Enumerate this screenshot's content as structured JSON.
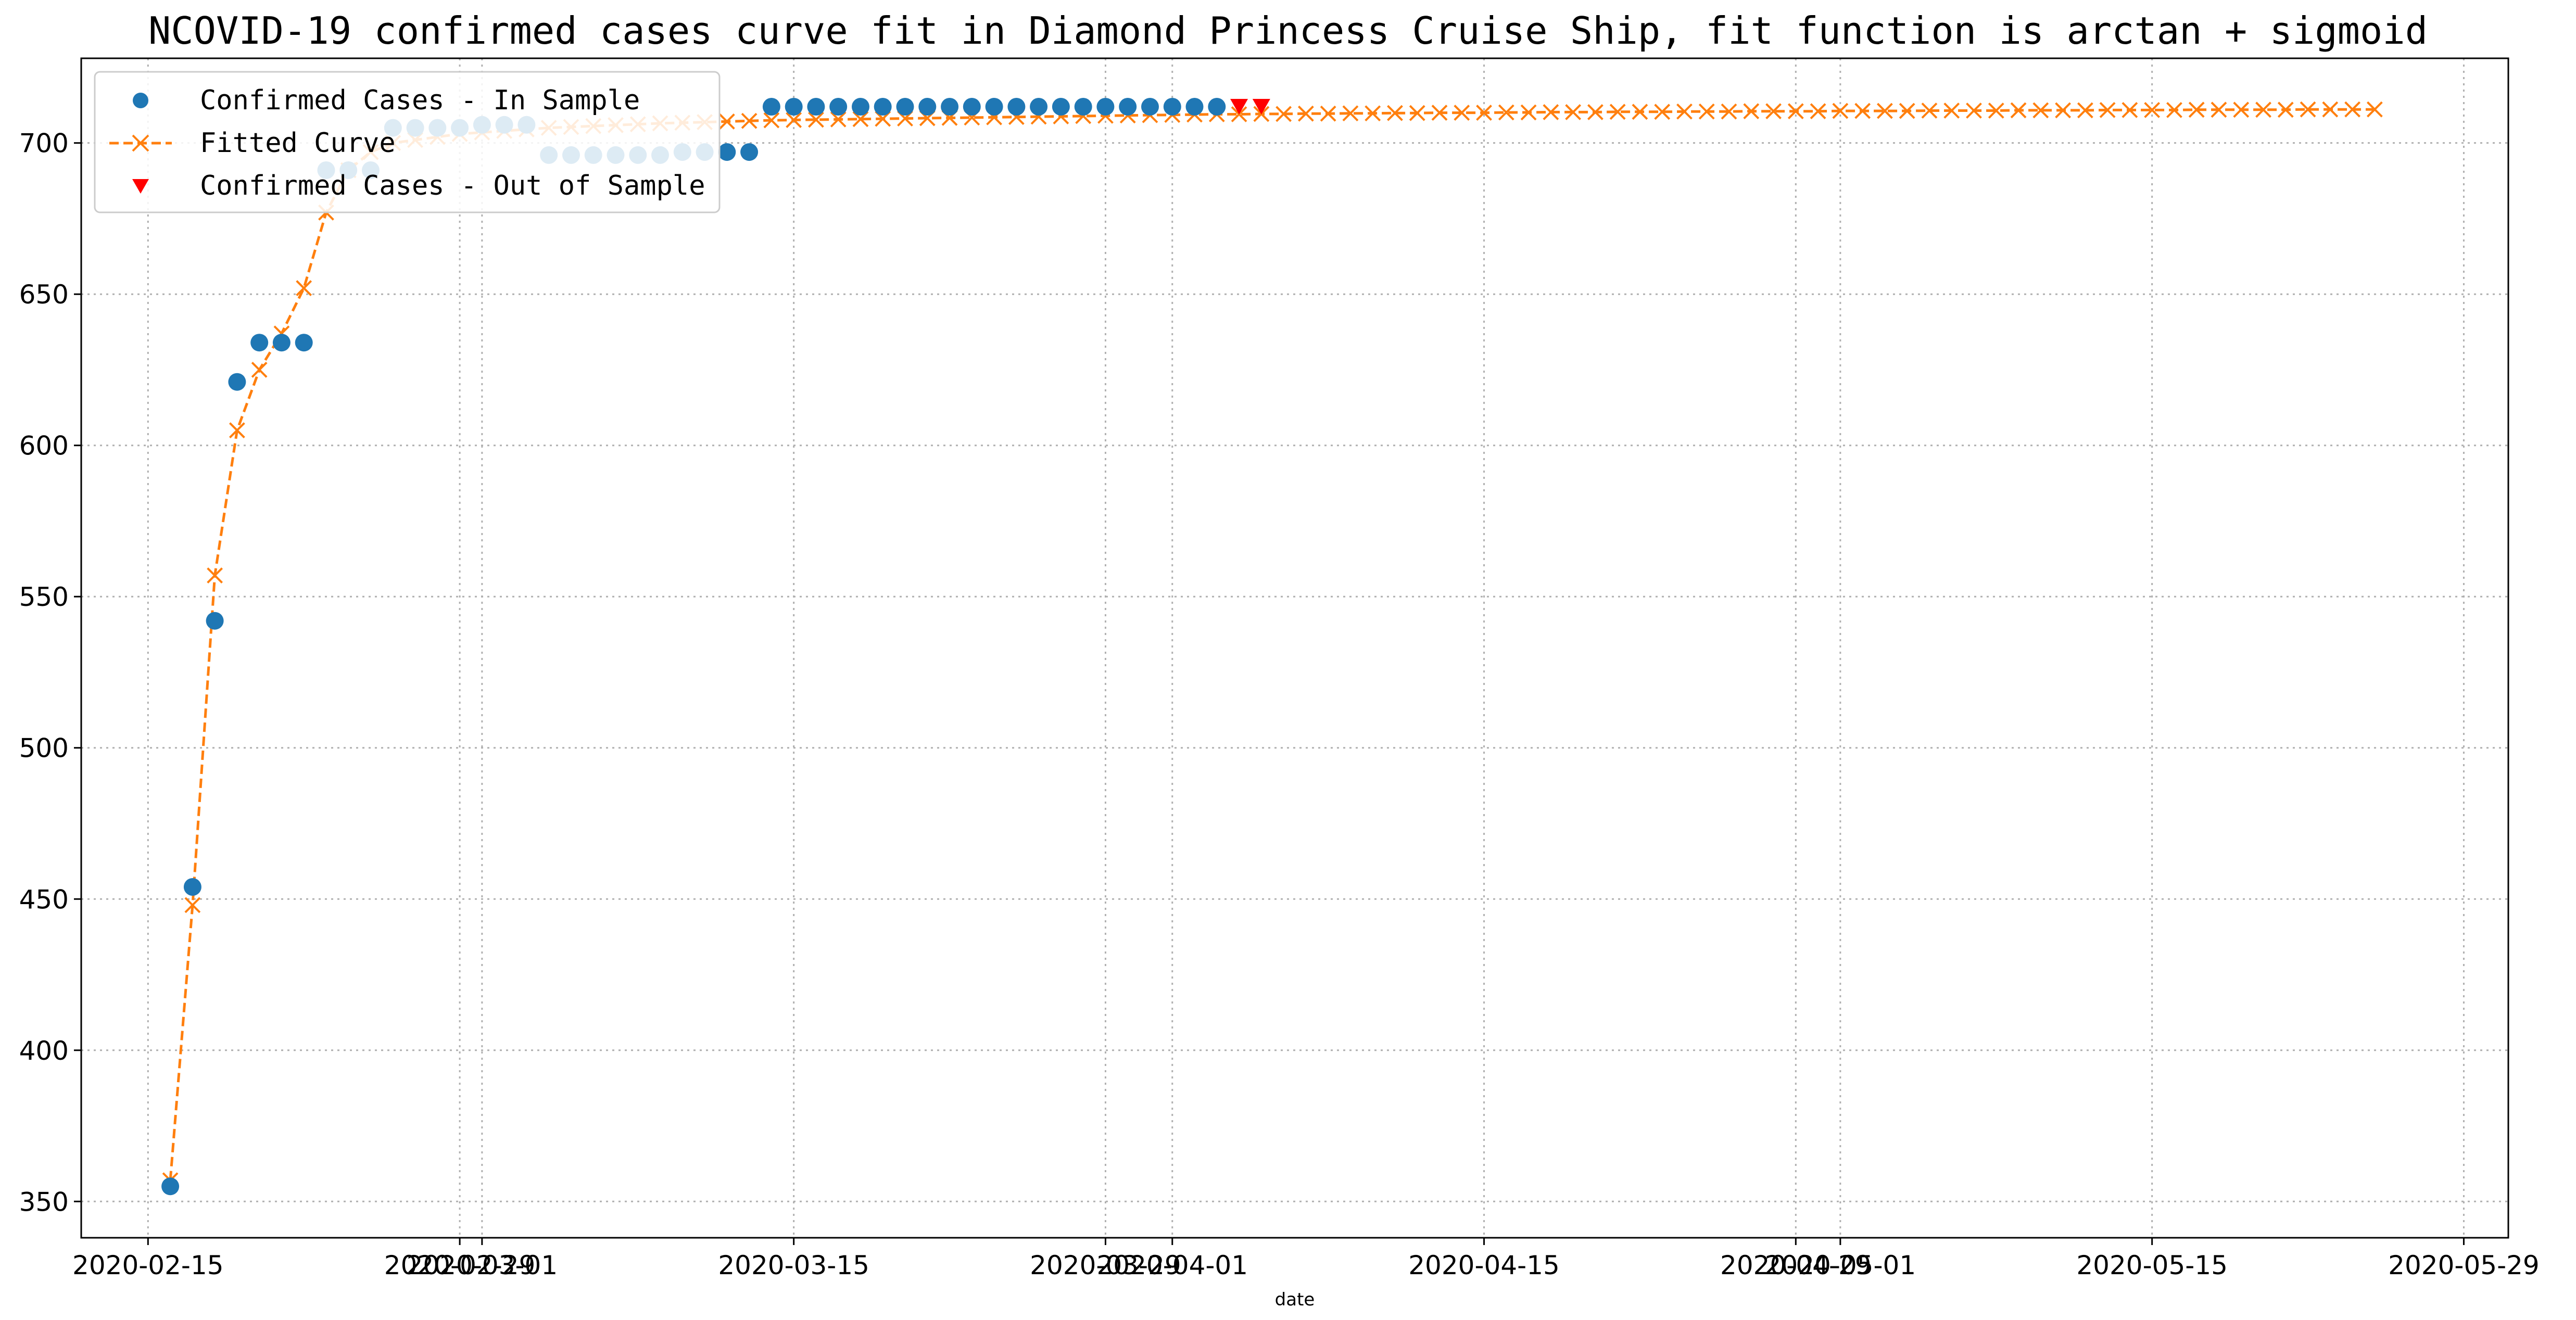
{
  "chart_data": {
    "type": "line",
    "title": "NCOVID-19 confirmed cases curve fit in Diamond Princess Cruise Ship, fit function is arctan + sigmoid",
    "xlabel": "date",
    "ylabel": "",
    "xlim": [
      "2020-02-12",
      "2020-05-31"
    ],
    "ylim": [
      338,
      728
    ],
    "grid": true,
    "legend_position": "top-left",
    "x_tick_labels": [
      "2020-02-15",
      "2020-02-29",
      "2020-03-01",
      "2020-03-15",
      "2020-03-29",
      "2020-04-01",
      "2020-04-15",
      "2020-04-29",
      "2020-05-01",
      "2020-05-15",
      "2020-05-29"
    ],
    "x_ticks": [
      "2020-02-15",
      "2020-02-29",
      "2020-03-01",
      "2020-03-15",
      "2020-03-29",
      "2020-04-01",
      "2020-04-15",
      "2020-04-29",
      "2020-05-01",
      "2020-05-15",
      "2020-05-29"
    ],
    "y_ticks": [
      350,
      400,
      450,
      500,
      550,
      600,
      650,
      700
    ],
    "y_tick_labels": [
      "350",
      "400",
      "450",
      "500",
      "550",
      "600",
      "650",
      "700"
    ],
    "series": [
      {
        "name": "Confirmed Cases - In Sample",
        "kind": "scatter",
        "marker": "circle",
        "color": "#1f77b4",
        "start_date": "2020-02-16",
        "values": [
          355,
          454,
          542,
          621,
          634,
          634,
          634,
          691,
          691,
          691,
          705,
          705,
          705,
          705,
          706,
          706,
          706,
          696,
          696,
          696,
          696,
          696,
          696,
          697,
          697,
          697,
          697,
          712,
          712,
          712,
          712,
          712,
          712,
          712,
          712,
          712,
          712,
          712,
          712,
          712,
          712,
          712,
          712,
          712,
          712,
          712,
          712,
          712
        ]
      },
      {
        "name": "Fitted Curve",
        "kind": "line",
        "marker": "x",
        "line_style": "dashed",
        "color": "#ff7f0e",
        "start_date": "2020-02-16",
        "values": [
          357,
          448,
          557,
          605,
          625,
          637,
          652,
          677,
          691,
          697,
          700,
          701,
          702,
          703,
          703.5,
          704,
          704.5,
          705,
          705.3,
          705.6,
          705.9,
          706.2,
          706.5,
          706.7,
          706.9,
          707.1,
          707.3,
          707.5,
          707.6,
          707.7,
          707.8,
          707.9,
          708,
          708.1,
          708.2,
          708.3,
          708.4,
          708.5,
          708.6,
          708.7,
          708.8,
          708.9,
          709,
          709.1,
          709.2,
          709.3,
          709.4,
          709.5,
          709.5,
          709.6,
          709.6,
          709.7,
          709.7,
          709.8,
          709.8,
          709.9,
          709.9,
          710,
          710,
          710,
          710.1,
          710.1,
          710.2,
          710.2,
          710.2,
          710.3,
          710.3,
          710.3,
          710.4,
          710.4,
          710.4,
          710.5,
          710.5,
          710.5,
          710.5,
          710.6,
          710.6,
          710.6,
          710.6,
          710.7,
          710.7,
          710.7,
          710.7,
          710.8,
          710.8,
          710.8,
          710.8,
          710.9,
          710.9,
          710.9,
          710.9,
          711,
          711,
          711,
          711,
          711,
          711.1,
          711.1,
          711.1,
          711.1
        ]
      },
      {
        "name": "Confirmed Cases - Out of Sample",
        "kind": "scatter",
        "marker": "triangle-down",
        "color": "#ff0000",
        "start_date": "2020-04-04",
        "values": [
          712,
          712
        ]
      }
    ]
  }
}
